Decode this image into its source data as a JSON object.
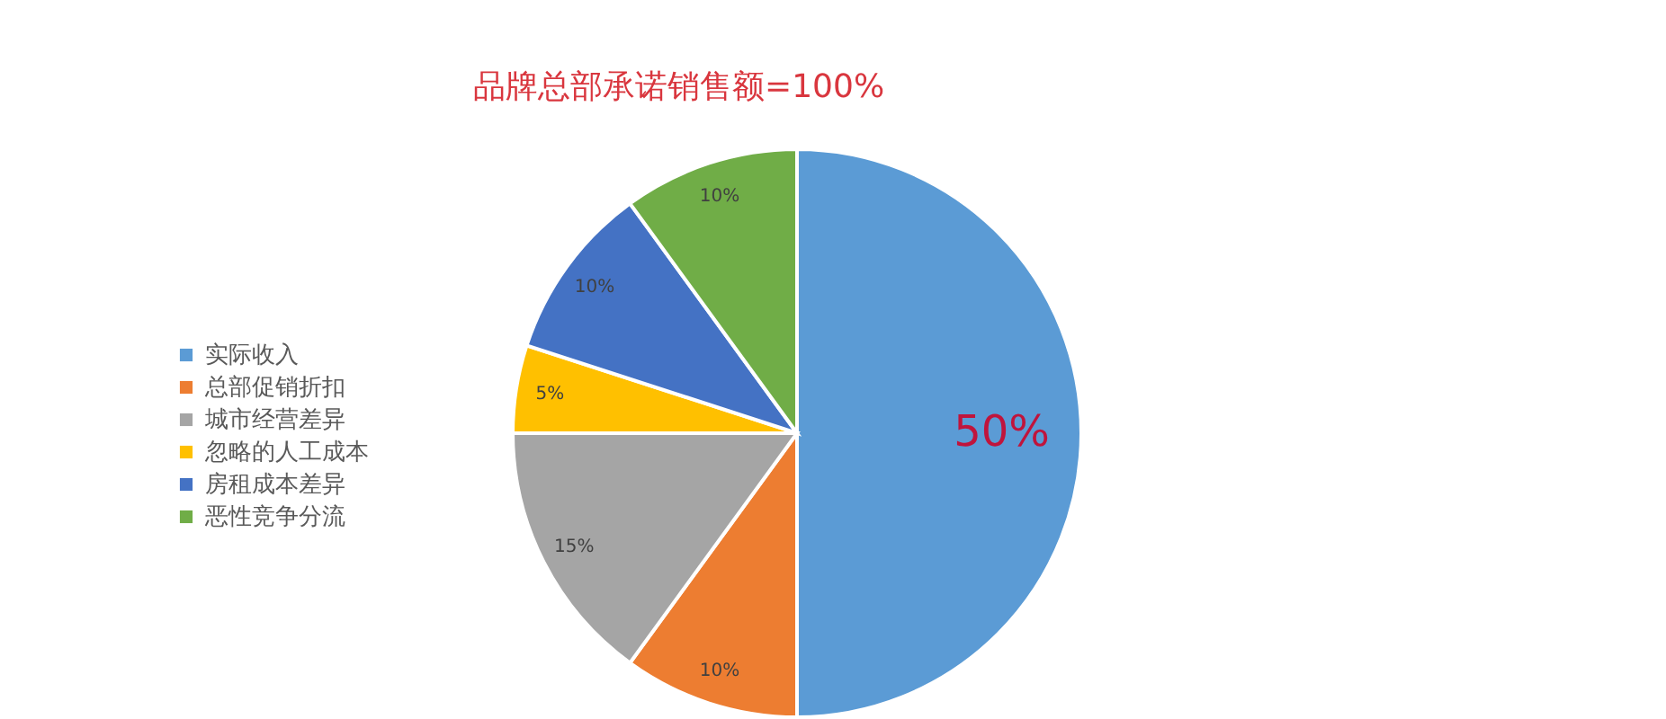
{
  "chart_data": {
    "type": "pie",
    "title": "品牌总部承诺销售额=100%",
    "categories": [
      "实际收入",
      "总部促销折扣",
      "城市经营差异",
      "忽略的人工成本",
      "房租成本差异",
      "恶性竞争分流"
    ],
    "values": [
      50,
      10,
      15,
      5,
      10,
      10
    ],
    "colors": [
      "#5b9bd5",
      "#ed7d31",
      "#a5a5a5",
      "#ffc000",
      "#4472c4",
      "#70ad47"
    ],
    "value_labels": [
      "50%",
      "10%",
      "15%",
      "5%",
      "10%",
      "10%"
    ],
    "legend": "left"
  }
}
